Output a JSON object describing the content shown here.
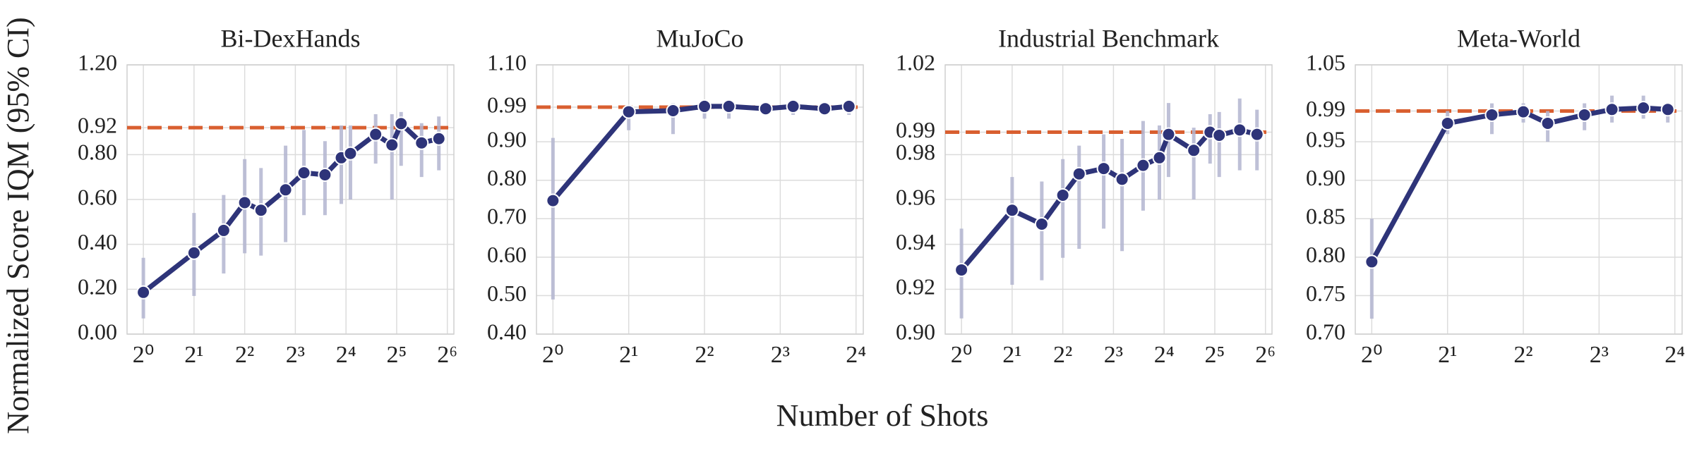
{
  "ylabel": "Normalized Score IQM (95% CI)",
  "xlabel": "Number of Shots",
  "chart_data": [
    {
      "type": "line",
      "title": "Bi-DexHands",
      "log_x": true,
      "grid": true,
      "color": "#2e3479",
      "ci_color": "#b3b5d0",
      "reference": 0.92,
      "reference_color": "#d95f30",
      "x": [
        1,
        2,
        3,
        4,
        5,
        7,
        9,
        12,
        15,
        17,
        24,
        30,
        34,
        45,
        57
      ],
      "values": [
        0.186,
        0.362,
        0.462,
        0.586,
        0.552,
        0.643,
        0.719,
        0.71,
        0.786,
        0.805,
        0.89,
        0.843,
        0.938,
        0.852,
        0.871
      ],
      "lower": [
        0.07,
        0.17,
        0.27,
        0.36,
        0.35,
        0.41,
        0.53,
        0.53,
        0.58,
        0.6,
        0.76,
        0.6,
        0.75,
        0.7,
        0.73
      ],
      "upper": [
        0.34,
        0.54,
        0.62,
        0.78,
        0.74,
        0.84,
        0.91,
        0.86,
        0.93,
        0.93,
        0.98,
        0.98,
        0.99,
        0.94,
        0.97
      ],
      "xlim": [
        0.8,
        70
      ],
      "ylim": [
        0,
        1.2
      ],
      "xticks": [
        {
          "value": 1,
          "label": "2⁰"
        },
        {
          "value": 2,
          "label": "2¹"
        },
        {
          "value": 4,
          "label": "2²"
        },
        {
          "value": 8,
          "label": "2³"
        },
        {
          "value": 16,
          "label": "2⁴"
        },
        {
          "value": 32,
          "label": "2⁵"
        },
        {
          "value": 64,
          "label": "2⁶"
        }
      ],
      "yticks": [
        {
          "value": 0,
          "label": "0.00"
        },
        {
          "value": 0.2,
          "label": "0.20"
        },
        {
          "value": 0.4,
          "label": "0.40"
        },
        {
          "value": 0.6,
          "label": "0.60"
        },
        {
          "value": 0.8,
          "label": "0.80"
        },
        {
          "value": 0.92,
          "label": "0.92"
        },
        {
          "value": 1.2,
          "label": "1.20"
        }
      ]
    },
    {
      "type": "line",
      "title": "MuJoCo",
      "log_x": true,
      "grid": true,
      "color": "#2e3479",
      "ci_color": "#b3b5d0",
      "reference": 0.99,
      "reference_color": "#d95f30",
      "x": [
        1,
        2,
        3,
        4,
        5,
        7,
        9,
        12,
        15
      ],
      "values": [
        0.747,
        0.978,
        0.981,
        0.992,
        0.992,
        0.986,
        0.992,
        0.986,
        0.992
      ],
      "lower": [
        0.49,
        0.93,
        0.92,
        0.96,
        0.96,
        0.97,
        0.97,
        0.97,
        0.97
      ],
      "upper": [
        0.91,
        0.99,
        1.0,
        1.0,
        1.01,
        1.0,
        1.01,
        1.0,
        1.0
      ],
      "xlim": [
        0.86,
        17.1
      ],
      "ylim": [
        0.4,
        1.1
      ],
      "xticks": [
        {
          "value": 1,
          "label": "2⁰"
        },
        {
          "value": 2,
          "label": "2¹"
        },
        {
          "value": 4,
          "label": "2²"
        },
        {
          "value": 8,
          "label": "2³"
        },
        {
          "value": 16,
          "label": "2⁴"
        }
      ],
      "yticks": [
        {
          "value": 0.4,
          "label": "0.40"
        },
        {
          "value": 0.5,
          "label": "0.50"
        },
        {
          "value": 0.6,
          "label": "0.60"
        },
        {
          "value": 0.7,
          "label": "0.70"
        },
        {
          "value": 0.8,
          "label": "0.80"
        },
        {
          "value": 0.9,
          "label": "0.90"
        },
        {
          "value": 0.99,
          "label": "0.99"
        },
        {
          "value": 1.1,
          "label": "1.10"
        }
      ]
    },
    {
      "type": "line",
      "title": "Industrial Benchmark",
      "log_x": true,
      "grid": true,
      "color": "#2e3479",
      "ci_color": "#b3b5d0",
      "reference": 0.99,
      "reference_color": "#d95f30",
      "x": [
        1,
        2,
        3,
        4,
        5,
        7,
        9,
        12,
        15,
        17,
        24,
        30,
        34,
        45,
        57
      ],
      "values": [
        0.9286,
        0.9552,
        0.949,
        0.9619,
        0.9714,
        0.9738,
        0.969,
        0.9752,
        0.9786,
        0.989,
        0.9819,
        0.99,
        0.9886,
        0.991,
        0.989
      ],
      "lower": [
        0.907,
        0.922,
        0.924,
        0.934,
        0.938,
        0.947,
        0.937,
        0.955,
        0.96,
        0.97,
        0.96,
        0.976,
        0.97,
        0.973,
        0.973
      ],
      "upper": [
        0.947,
        0.97,
        0.968,
        0.978,
        0.984,
        0.989,
        0.987,
        0.995,
        0.993,
        1.003,
        0.992,
        0.998,
        0.999,
        1.005,
        1.0
      ],
      "xlim": [
        0.8,
        70
      ],
      "ylim": [
        0.9,
        1.02
      ],
      "xticks": [
        {
          "value": 1,
          "label": "2⁰"
        },
        {
          "value": 2,
          "label": "2¹"
        },
        {
          "value": 4,
          "label": "2²"
        },
        {
          "value": 8,
          "label": "2³"
        },
        {
          "value": 16,
          "label": "2⁴"
        },
        {
          "value": 32,
          "label": "2⁵"
        },
        {
          "value": 64,
          "label": "2⁶"
        }
      ],
      "yticks": [
        {
          "value": 0.9,
          "label": "0.90"
        },
        {
          "value": 0.92,
          "label": "0.92"
        },
        {
          "value": 0.94,
          "label": "0.94"
        },
        {
          "value": 0.96,
          "label": "0.96"
        },
        {
          "value": 0.98,
          "label": "0.98"
        },
        {
          "value": 0.99,
          "label": "0.99"
        },
        {
          "value": 1.02,
          "label": "1.02"
        }
      ]
    },
    {
      "type": "line",
      "title": "Meta-World",
      "log_x": true,
      "grid": true,
      "color": "#2e3479",
      "ci_color": "#b3b5d0",
      "reference": 0.99,
      "reference_color": "#d95f30",
      "x": [
        1,
        2,
        3,
        4,
        5,
        7,
        9,
        12,
        15
      ],
      "values": [
        0.794,
        0.974,
        0.985,
        0.989,
        0.974,
        0.985,
        0.992,
        0.994,
        0.992
      ],
      "lower": [
        0.72,
        0.96,
        0.96,
        0.975,
        0.95,
        0.965,
        0.975,
        0.98,
        0.975
      ],
      "upper": [
        0.85,
        0.99,
        1.0,
        1.0,
        0.99,
        1.0,
        1.01,
        1.01,
        1.0
      ],
      "xlim": [
        0.86,
        17.1
      ],
      "ylim": [
        0.7,
        1.05
      ],
      "xticks": [
        {
          "value": 1,
          "label": "2⁰"
        },
        {
          "value": 2,
          "label": "2¹"
        },
        {
          "value": 4,
          "label": "2²"
        },
        {
          "value": 8,
          "label": "2³"
        },
        {
          "value": 16,
          "label": "2⁴"
        }
      ],
      "yticks": [
        {
          "value": 0.7,
          "label": "0.70"
        },
        {
          "value": 0.75,
          "label": "0.75"
        },
        {
          "value": 0.8,
          "label": "0.80"
        },
        {
          "value": 0.85,
          "label": "0.85"
        },
        {
          "value": 0.9,
          "label": "0.90"
        },
        {
          "value": 0.95,
          "label": "0.95"
        },
        {
          "value": 0.99,
          "label": "0.99"
        },
        {
          "value": 1.05,
          "label": "1.05"
        }
      ]
    }
  ]
}
